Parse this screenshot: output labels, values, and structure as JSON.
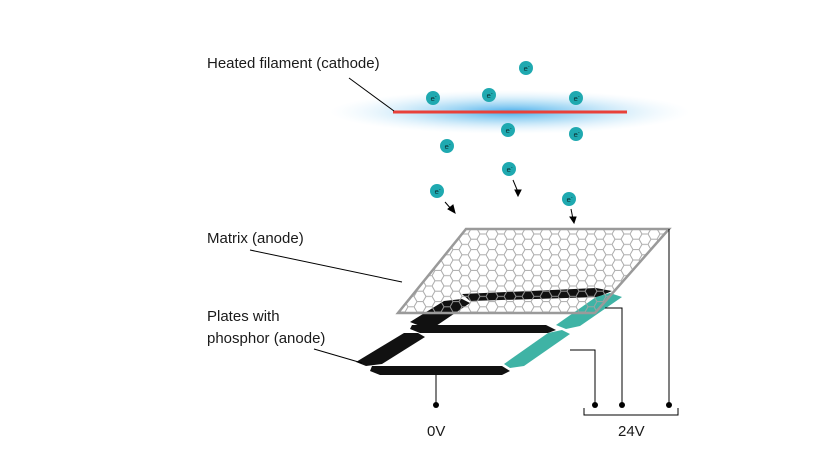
{
  "labels": {
    "cathode": "Heated filament (cathode)",
    "matrix": "Matrix (anode)",
    "plates_line1": "Plates with",
    "plates_line2": "phosphor (anode)",
    "zero_volt": "0V",
    "twentyfour_volt": "24V"
  },
  "electron": {
    "symbol": "e",
    "charge": "-"
  },
  "colors": {
    "filament": "#e8413a",
    "glow": "#4fb3e8",
    "electron": "#1fa9b0",
    "teal_segment": "#3fb3a5",
    "black_segment": "#111111",
    "mesh": "#9a9a9a",
    "wire": "#000000"
  }
}
